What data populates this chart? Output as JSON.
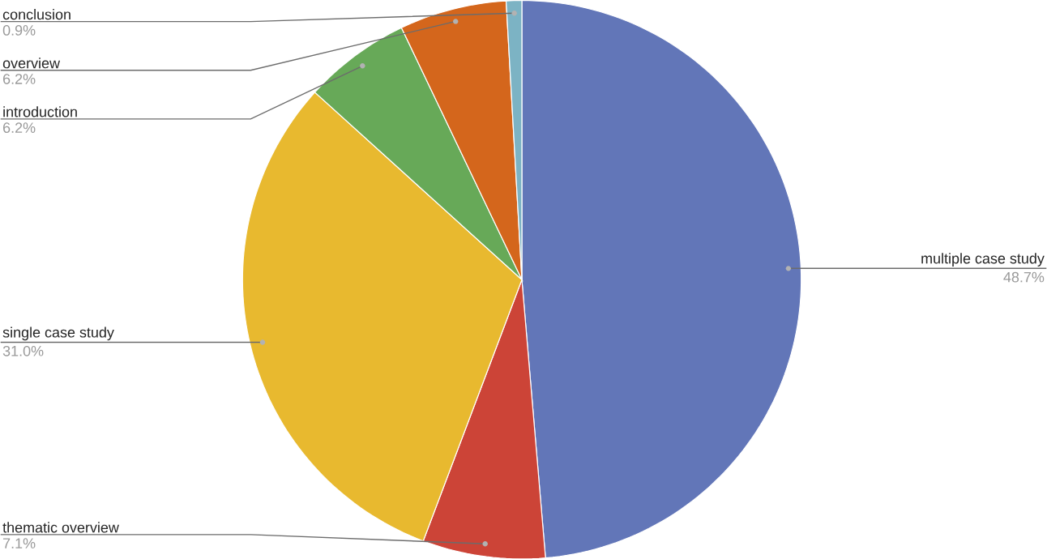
{
  "chart_data": {
    "type": "pie",
    "categories": [
      "multiple case study",
      "thematic overview",
      "single case study",
      "introduction",
      "overview",
      "conclusion"
    ],
    "values": [
      48.7,
      7.1,
      31.0,
      6.2,
      6.2,
      0.9
    ],
    "value_labels": [
      "48.7%",
      "7.1%",
      "31.0%",
      "6.2%",
      "6.2%",
      "0.9%"
    ],
    "colors": [
      "#6276b8",
      "#cc4437",
      "#e8b92f",
      "#67a958",
      "#d4661c",
      "#7cb3c4"
    ]
  }
}
